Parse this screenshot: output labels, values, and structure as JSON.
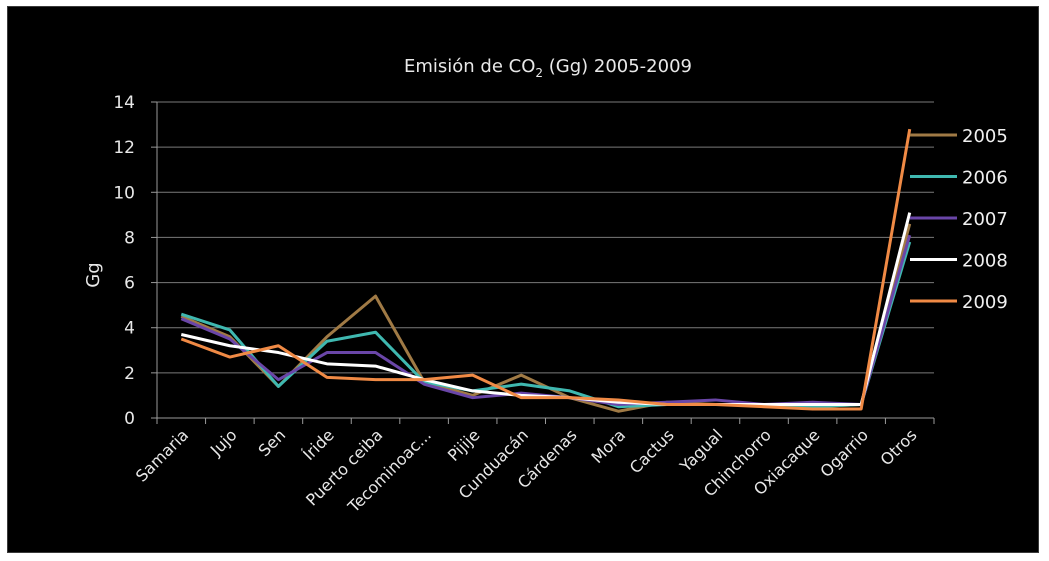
{
  "chart_data": {
    "type": "line",
    "title_main": "Emisión de CO",
    "title_sub": "2",
    "title_rest": " (Gg) 2005-2009",
    "ylabel": "Gg",
    "xlabel": "",
    "ylim": [
      0,
      14
    ],
    "yticks": [
      0,
      2,
      4,
      6,
      8,
      10,
      12,
      14
    ],
    "grid": true,
    "legend_position": "right",
    "categories": [
      "Samaria",
      "Jujo",
      "Sen",
      "Íride",
      "Puerto ceiba",
      "Tecominoac...",
      "Pijije",
      "Cunduacán",
      "Cárdenas",
      "Mora",
      "Cactus",
      "Yagual",
      "Chinchorro",
      "Oxiacaque",
      "Ogarrio",
      "Otros"
    ],
    "series": [
      {
        "name": "2005",
        "color": "#a07a45",
        "values": [
          4.5,
          3.6,
          1.4,
          3.6,
          5.4,
          1.6,
          1.0,
          1.9,
          0.9,
          0.3,
          0.7,
          0.6,
          0.6,
          0.5,
          0.6,
          8.6
        ]
      },
      {
        "name": "2006",
        "color": "#3fb8b0",
        "values": [
          4.6,
          3.9,
          1.4,
          3.4,
          3.8,
          1.6,
          1.2,
          1.5,
          1.2,
          0.5,
          0.6,
          0.6,
          0.6,
          0.5,
          0.6,
          7.8
        ]
      },
      {
        "name": "2007",
        "color": "#6a46a8",
        "values": [
          4.4,
          3.5,
          1.7,
          2.9,
          2.9,
          1.5,
          0.9,
          1.1,
          0.9,
          0.6,
          0.7,
          0.8,
          0.6,
          0.7,
          0.6,
          8.1
        ]
      },
      {
        "name": "2008",
        "color": "#ffffff",
        "values": [
          3.7,
          3.2,
          2.9,
          2.4,
          2.3,
          1.7,
          1.2,
          1.0,
          0.9,
          0.7,
          0.6,
          0.6,
          0.6,
          0.6,
          0.6,
          9.1
        ]
      },
      {
        "name": "2009",
        "color": "#f08a45",
        "values": [
          3.5,
          2.7,
          3.2,
          1.8,
          1.7,
          1.7,
          1.9,
          0.9,
          0.9,
          0.8,
          0.6,
          0.6,
          0.5,
          0.4,
          0.4,
          12.8
        ]
      }
    ]
  }
}
